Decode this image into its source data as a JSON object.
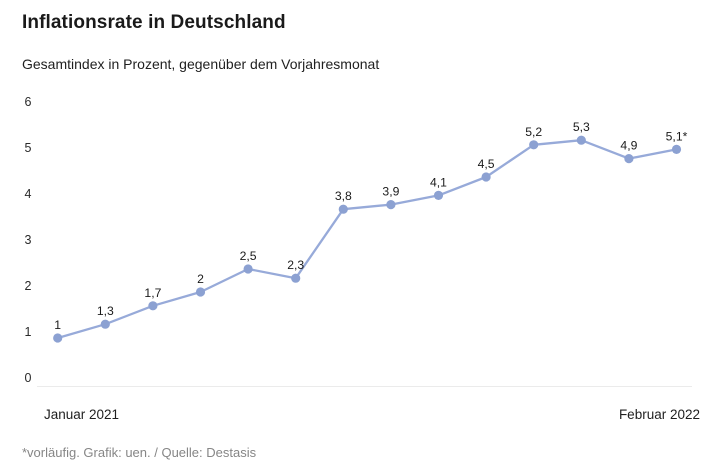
{
  "header": {
    "title": "Inflationsrate in Deutschland",
    "subtitle": "Gesamtindex in Prozent, gegenüber dem Vorjahresmonat"
  },
  "chart_data": {
    "type": "line",
    "title": "Inflationsrate in Deutschland",
    "subtitle": "Gesamtindex in Prozent, gegenüber dem Vorjahresmonat",
    "values": [
      1,
      1.3,
      1.7,
      2,
      2.5,
      2.3,
      3.8,
      3.9,
      4.1,
      4.5,
      5.2,
      5.3,
      4.9,
      5.1
    ],
    "point_labels": [
      "1",
      "1,3",
      "1,7",
      "2",
      "2,5",
      "2,3",
      "3,8",
      "3,9",
      "4,1",
      "4,5",
      "5,2",
      "5,3",
      "4,9",
      "5,1*"
    ],
    "y_ticks": [
      0,
      1,
      2,
      3,
      4,
      5,
      6
    ],
    "ylim": [
      0,
      6
    ],
    "x_start_label": "Januar 2021",
    "x_end_label": "Februar 2022",
    "grid": "baseline-only",
    "legend": "none",
    "line_color": "#97aad9",
    "point_color": "#8ca1d2",
    "label_color": "#1b1b1b",
    "tick_color": "#2a2a2a",
    "baseline_color": "#ebebeb"
  },
  "footer": {
    "note": "*vorläufig. Grafik: uen. / Quelle: Destasis"
  }
}
